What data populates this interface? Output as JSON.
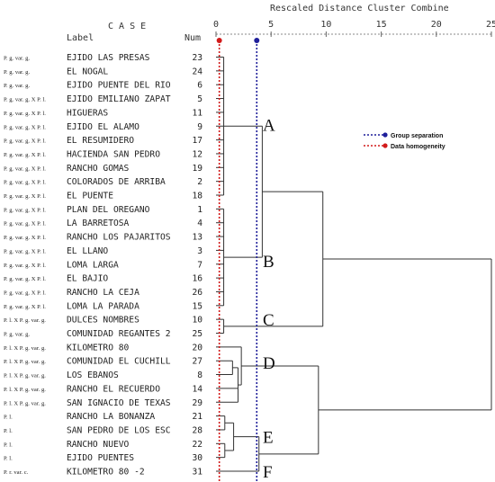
{
  "chart_data": {
    "type": "dendrogram",
    "title": "Rescaled Distance Cluster Combine",
    "case_header": "C A S E",
    "label_header": "Label",
    "num_header": "Num",
    "x_ticks": [
      "0",
      "5",
      "10",
      "15",
      "20",
      "25"
    ],
    "xlim": [
      0,
      25
    ],
    "cases": [
      {
        "group": "P. g. var. g.",
        "label": "EJIDO LAS PRESAS",
        "num": "23"
      },
      {
        "group": "P. g. var. g.",
        "label": "EL NOGAL",
        "num": "24"
      },
      {
        "group": "P. g. var. g.",
        "label": "EJIDO PUENTE DEL RIO",
        "num": "6"
      },
      {
        "group": "P. g. var. g. X P. l.",
        "label": "EJIDO EMILIANO ZAPAT",
        "num": "5"
      },
      {
        "group": "P. g. var. g. X P. l.",
        "label": "HIGUERAS",
        "num": "11"
      },
      {
        "group": "P. g. var. g. X P. l.",
        "label": "EJIDO EL ALAMO",
        "num": "9"
      },
      {
        "group": "P. g. var. g. X P. l.",
        "label": "EL RESUMIDERO",
        "num": "17"
      },
      {
        "group": "P. g. var. g. X P. l.",
        "label": "HACIENDA SAN PEDRO",
        "num": "12"
      },
      {
        "group": "P. g. var. g. X P. l.",
        "label": "RANCHO GOMAS",
        "num": "19"
      },
      {
        "group": "P. g. var. g. X P. l.",
        "label": "COLORADOS DE ARRIBA",
        "num": "2"
      },
      {
        "group": "P. g. var. g. X P. l.",
        "label": "EL PUENTE",
        "num": "18"
      },
      {
        "group": "P. g. var. g. X P. l.",
        "label": "PLAN DEL OREGANO",
        "num": "1"
      },
      {
        "group": "P. g. var. g. X P. l.",
        "label": "LA BARRETOSA",
        "num": "4"
      },
      {
        "group": "P. g. var. g. X P. l.",
        "label": "RANCHO LOS PAJARITOS",
        "num": "13"
      },
      {
        "group": "P. g. var. g. X P. l.",
        "label": "EL LLANO",
        "num": "3"
      },
      {
        "group": "P. g. var. g. X P. l.",
        "label": "LOMA LARGA",
        "num": "7"
      },
      {
        "group": "P. g. var. g. X P. l.",
        "label": "EL BAJIO",
        "num": "16"
      },
      {
        "group": "P. g. var. g. X P. l.",
        "label": "RANCHO LA CEJA",
        "num": "26"
      },
      {
        "group": "P. g. var. g. X P. l.",
        "label": "LOMA LA PARADA",
        "num": "15"
      },
      {
        "group": "P. l. X P. g. var. g.",
        "label": "DULCES NOMBRES",
        "num": "10"
      },
      {
        "group": "P. g. var. g.",
        "label": "COMUNIDAD REGANTES 2",
        "num": "25"
      },
      {
        "group": "P. l. X P. g. var. g.",
        "label": "KILOMETRO 80",
        "num": "20"
      },
      {
        "group": "P. l. X P. g. var. g.",
        "label": "COMUNIDAD EL CUCHILL",
        "num": "27"
      },
      {
        "group": "P. l. X P. g. var. g.",
        "label": "LOS EBANOS",
        "num": "8"
      },
      {
        "group": "P. l. X P. g. var. g.",
        "label": "RANCHO EL RECUERDO",
        "num": "14"
      },
      {
        "group": "P. l. X P. g. var. g.",
        "label": "SAN IGNACIO DE TEXAS",
        "num": "29"
      },
      {
        "group": "P. l.",
        "label": "RANCHO LA BONANZA",
        "num": "21"
      },
      {
        "group": "P. l.",
        "label": "SAN PEDRO DE LOS ESC",
        "num": "28"
      },
      {
        "group": "P. l.",
        "label": "RANCHO NUEVO",
        "num": "22"
      },
      {
        "group": "P. l.",
        "label": "EJIDO PUENTES",
        "num": "30"
      },
      {
        "group": "P. r. var. c.",
        "label": "KILOMETRO 80 -2",
        "num": "31"
      }
    ],
    "clusters": [
      {
        "label": "A",
        "rows": [
          0,
          10
        ],
        "distance": 4.2
      },
      {
        "label": "B",
        "rows": [
          11,
          18
        ],
        "distance": 4.2
      },
      {
        "label": "C",
        "rows": [
          19,
          20
        ],
        "distance": 0.9
      },
      {
        "label": "D",
        "rows": [
          21,
          25
        ],
        "distance": 2.3
      },
      {
        "label": "E",
        "rows": [
          26,
          29
        ],
        "distance": 3.9
      },
      {
        "label": "F",
        "rows": [
          30,
          30
        ],
        "distance": 0
      }
    ],
    "reference_lines": [
      {
        "name": "Group separation",
        "distance": 3.7,
        "color": "#1f1f9a"
      },
      {
        "name": "Data homogeneity",
        "distance": 0.3,
        "color": "#d21a1a"
      }
    ],
    "legend_position": "right"
  }
}
